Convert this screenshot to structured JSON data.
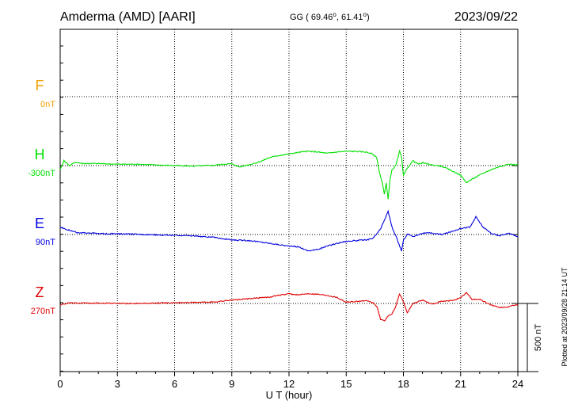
{
  "header": {
    "station": "Amderma (AMD)  [AARI]",
    "coords": "GG ( 69.46",
    "coords_lon": ",  61.41",
    "coords_end": ")",
    "date": "2023/09/22"
  },
  "footer": {
    "plotted": "Plotted at 2023/09/28 21:14 UT"
  },
  "colors": {
    "F": "#f0a000",
    "H": "#00e000",
    "E": "#0000e0",
    "Z": "#e00000",
    "frame": "#000000"
  },
  "chart_data": {
    "type": "line",
    "xlabel": "U T (hour)",
    "x_ticks": [
      "0",
      "3",
      "6",
      "9",
      "12",
      "15",
      "18",
      "21",
      "24"
    ],
    "xlim": [
      0,
      24
    ],
    "scale_bar": {
      "label": "500 nT",
      "value_nT": 500
    },
    "series": [
      {
        "name": "F",
        "baseline_label": "0nT",
        "points": []
      },
      {
        "name": "H",
        "baseline_label": "-300nT",
        "points": [
          [
            0,
            -330
          ],
          [
            0.2,
            -265
          ],
          [
            0.5,
            -300
          ],
          [
            0.8,
            -275
          ],
          [
            1.2,
            -285
          ],
          [
            2,
            -285
          ],
          [
            3,
            -290
          ],
          [
            4,
            -290
          ],
          [
            5,
            -295
          ],
          [
            6,
            -300
          ],
          [
            7,
            -303
          ],
          [
            8,
            -298
          ],
          [
            8.7,
            -288
          ],
          [
            9,
            -288
          ],
          [
            9.4,
            -310
          ],
          [
            10,
            -290
          ],
          [
            10.5,
            -270
          ],
          [
            11,
            -240
          ],
          [
            11.5,
            -225
          ],
          [
            12,
            -215
          ],
          [
            12.5,
            -203
          ],
          [
            13,
            -195
          ],
          [
            13.5,
            -200
          ],
          [
            14,
            -210
          ],
          [
            14.5,
            -200
          ],
          [
            15,
            -195
          ],
          [
            15.5,
            -196
          ],
          [
            16,
            -200
          ],
          [
            16.3,
            -210
          ],
          [
            16.6,
            -240
          ],
          [
            16.7,
            -320
          ],
          [
            16.8,
            -380
          ],
          [
            16.9,
            -430
          ],
          [
            17,
            -510
          ],
          [
            17.1,
            -430
          ],
          [
            17.2,
            -550
          ],
          [
            17.3,
            -400
          ],
          [
            17.4,
            -330
          ],
          [
            17.6,
            -300
          ],
          [
            17.8,
            -195
          ],
          [
            17.9,
            -235
          ],
          [
            18,
            -370
          ],
          [
            18.2,
            -320
          ],
          [
            18.5,
            -265
          ],
          [
            18.8,
            -290
          ],
          [
            19,
            -280
          ],
          [
            19.5,
            -295
          ],
          [
            20,
            -305
          ],
          [
            20.5,
            -335
          ],
          [
            21,
            -370
          ],
          [
            21.3,
            -425
          ],
          [
            21.6,
            -400
          ],
          [
            22,
            -370
          ],
          [
            22.5,
            -335
          ],
          [
            23,
            -310
          ],
          [
            23.5,
            -290
          ],
          [
            24,
            -295
          ]
        ]
      },
      {
        "name": "E",
        "baseline_label": "90nT",
        "points": [
          [
            0,
            145
          ],
          [
            0.5,
            120
          ],
          [
            1,
            100
          ],
          [
            1.5,
            103
          ],
          [
            2,
            96
          ],
          [
            3,
            95
          ],
          [
            4,
            92
          ],
          [
            5,
            88
          ],
          [
            6,
            84
          ],
          [
            7,
            80
          ],
          [
            8,
            70
          ],
          [
            9,
            50
          ],
          [
            10,
            45
          ],
          [
            11,
            25
          ],
          [
            11.5,
            15
          ],
          [
            12,
            5
          ],
          [
            12.5,
            0
          ],
          [
            13,
            -30
          ],
          [
            13.5,
            -20
          ],
          [
            14,
            5
          ],
          [
            14.5,
            25
          ],
          [
            15,
            40
          ],
          [
            15.5,
            45
          ],
          [
            16,
            50
          ],
          [
            16.4,
            60
          ],
          [
            16.8,
            130
          ],
          [
            17,
            195
          ],
          [
            17.2,
            260
          ],
          [
            17.4,
            145
          ],
          [
            17.6,
            80
          ],
          [
            17.9,
            -30
          ],
          [
            18,
            45
          ],
          [
            18.2,
            95
          ],
          [
            18.5,
            75
          ],
          [
            19,
            100
          ],
          [
            19.5,
            100
          ],
          [
            20,
            90
          ],
          [
            20.5,
            110
          ],
          [
            21,
            135
          ],
          [
            21.5,
            145
          ],
          [
            21.8,
            220
          ],
          [
            22.2,
            140
          ],
          [
            22.6,
            100
          ],
          [
            23,
            80
          ],
          [
            23.5,
            100
          ],
          [
            24,
            75
          ]
        ]
      },
      {
        "name": "Z",
        "baseline_label": "270nT",
        "points": [
          [
            0,
            260
          ],
          [
            0.5,
            275
          ],
          [
            1,
            272
          ],
          [
            2,
            273
          ],
          [
            3,
            270
          ],
          [
            4,
            270
          ],
          [
            5,
            272
          ],
          [
            6,
            275
          ],
          [
            7,
            278
          ],
          [
            8,
            280
          ],
          [
            9,
            295
          ],
          [
            10,
            305
          ],
          [
            11,
            318
          ],
          [
            11.5,
            330
          ],
          [
            12,
            340
          ],
          [
            12.5,
            332
          ],
          [
            13,
            343
          ],
          [
            13.5,
            338
          ],
          [
            14,
            330
          ],
          [
            14.5,
            315
          ],
          [
            15,
            280
          ],
          [
            15.5,
            285
          ],
          [
            16,
            290
          ],
          [
            16.4,
            275
          ],
          [
            16.6,
            250
          ],
          [
            16.8,
            155
          ],
          [
            17,
            140
          ],
          [
            17.2,
            180
          ],
          [
            17.4,
            190
          ],
          [
            17.6,
            250
          ],
          [
            17.8,
            340
          ],
          [
            18,
            285
          ],
          [
            18.2,
            200
          ],
          [
            18.5,
            270
          ],
          [
            19,
            295
          ],
          [
            19.5,
            265
          ],
          [
            20,
            285
          ],
          [
            20.5,
            290
          ],
          [
            21,
            310
          ],
          [
            21.3,
            350
          ],
          [
            21.6,
            300
          ],
          [
            22,
            300
          ],
          [
            22.5,
            265
          ],
          [
            23,
            240
          ],
          [
            23.5,
            245
          ],
          [
            24,
            262
          ]
        ]
      }
    ],
    "grid": true
  }
}
